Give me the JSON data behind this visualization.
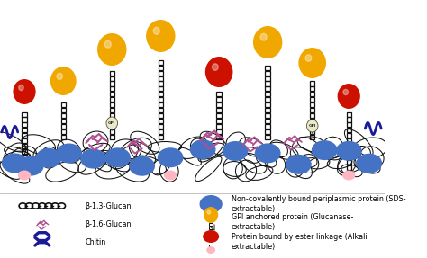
{
  "bg_color": "#ffffff",
  "wall_color": "#111111",
  "blue_oval_color": "#4472c4",
  "pink_oval_color": "#ffb6c1",
  "red_sphere_color": "#cc1100",
  "yellow_sphere_color": "#f0a800",
  "mauve_color": "#b05090",
  "navy_color": "#1a1a99",
  "chain_color": "#111111",
  "gpi_color": "#e8e8cc",
  "legend_b13": "β-1,3-Glucan",
  "legend_b16": "β-1,6-Glucan",
  "legend_chitin": "Chitin",
  "legend_blue": "Non-covalently bound periplasmic protein (SDS-\nextractable)",
  "legend_gpi": "GPI anchored protein (Glucanase-\nextractable)",
  "legend_red": "Protein bound by ester linkage (Alkali\nextractable)"
}
